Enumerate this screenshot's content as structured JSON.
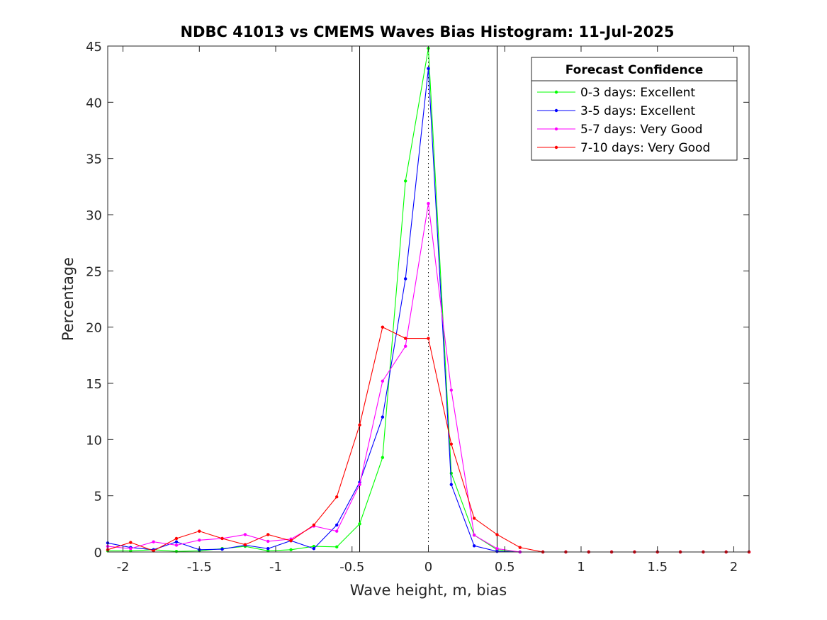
{
  "chart_data": {
    "type": "line",
    "title": "NDBC 41013 vs CMEMS Waves Bias Histogram: 11-Jul-2025",
    "xlabel": "Wave height, m, bias",
    "ylabel": "Percentage",
    "xlim": [
      -2.1,
      2.1
    ],
    "ylim": [
      0,
      45
    ],
    "xticks": [
      -2,
      -1.5,
      -1,
      -0.5,
      0,
      0.5,
      1,
      1.5,
      2
    ],
    "xtick_labels": [
      "-2",
      "-1.5",
      "-1",
      "-0.5",
      "0",
      "0.5",
      "1",
      "1.5",
      "2"
    ],
    "yticks": [
      0,
      5,
      10,
      15,
      20,
      25,
      30,
      35,
      40,
      45
    ],
    "ytick_labels": [
      "0",
      "5",
      "10",
      "15",
      "20",
      "25",
      "30",
      "35",
      "40",
      "45"
    ],
    "grid": false,
    "legend": {
      "title": "Forecast Confidence",
      "placement": "top-right"
    },
    "vertical_lines": [
      {
        "x": -0.45,
        "style": "solid",
        "color": "#000000"
      },
      {
        "x": 0.45,
        "style": "solid",
        "color": "#000000"
      },
      {
        "x": 0,
        "style": "dotted",
        "color": "#000000"
      }
    ],
    "x": [
      -2.1,
      -1.95,
      -1.8,
      -1.65,
      -1.5,
      -1.35,
      -1.2,
      -1.05,
      -0.9,
      -0.75,
      -0.6,
      -0.45,
      -0.3,
      -0.15,
      0,
      0.15,
      0.3,
      0.45,
      0.6,
      0.75,
      0.9,
      1.05,
      1.2,
      1.35,
      1.5,
      1.65,
      1.8,
      1.95,
      2.1
    ],
    "series": [
      {
        "name": "0-3 days: Excellent",
        "color": "#00ff00",
        "values": [
          0.1,
          0.1,
          0.2,
          0.05,
          0.1,
          0.3,
          0.5,
          0.1,
          0.2,
          0.5,
          0.45,
          2.5,
          8.4,
          33.0,
          44.8,
          7.0,
          1.5,
          0.2,
          0.0,
          0,
          0,
          0,
          0,
          0,
          0,
          0,
          0,
          0,
          0
        ]
      },
      {
        "name": "3-5 days: Excellent",
        "color": "#0000ff",
        "values": [
          0.8,
          0.4,
          0.2,
          0.9,
          0.2,
          0.25,
          0.6,
          0.3,
          1.0,
          0.3,
          2.4,
          6.2,
          12.0,
          24.3,
          43.0,
          6.0,
          0.55,
          0.05,
          0.0,
          0,
          0,
          0,
          0,
          0,
          0,
          0,
          0,
          0,
          0
        ]
      },
      {
        "name": "5-7 days: Very Good",
        "color": "#ff00ff",
        "values": [
          0.5,
          0.3,
          0.9,
          0.6,
          1.05,
          1.2,
          1.55,
          0.95,
          1.15,
          2.3,
          1.85,
          6.0,
          15.2,
          18.3,
          31.0,
          14.4,
          1.5,
          0.3,
          0.0,
          0,
          0,
          0,
          0,
          0,
          0,
          0,
          0,
          0,
          0
        ]
      },
      {
        "name": "7-10 days: Very Good",
        "color": "#ff0000",
        "values": [
          0.2,
          0.85,
          0.1,
          1.2,
          1.85,
          1.2,
          0.65,
          1.55,
          1.0,
          2.4,
          4.9,
          11.3,
          20.0,
          19.0,
          19.0,
          9.6,
          3.0,
          1.55,
          0.4,
          0,
          0,
          0,
          0,
          0,
          0,
          0,
          0,
          0,
          0
        ]
      }
    ]
  }
}
